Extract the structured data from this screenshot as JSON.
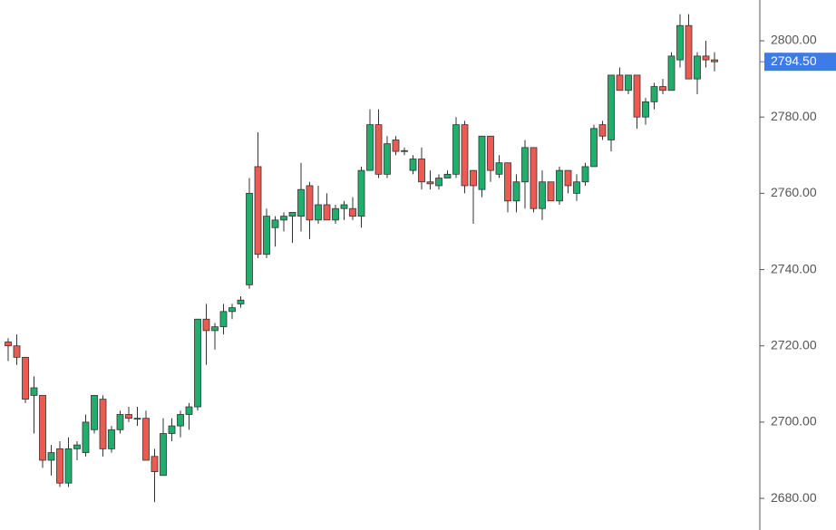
{
  "chart_data": {
    "type": "candlestick",
    "open": [
      2721,
      2720,
      2717,
      2707,
      2707,
      2690,
      2693,
      2684,
      2693,
      2692,
      2698,
      2706,
      2693,
      2698,
      2702,
      2701,
      2701,
      2691,
      2686,
      2697,
      2699,
      2702,
      2704,
      2727,
      2724,
      2725,
      2729,
      2731,
      2736,
      2767,
      2744,
      2751,
      2753,
      2754,
      2754,
      2762,
      2753,
      2757,
      2753,
      2756,
      2756,
      2754,
      2766,
      2778,
      2765,
      2774,
      2771,
      2766,
      2769,
      2763,
      2762,
      2764,
      2765,
      2778,
      2766,
      2761,
      2775,
      2765,
      2768,
      2758,
      2763,
      2772,
      2756,
      2763,
      2758,
      2766,
      2760,
      2763,
      2767,
      2778,
      2774,
      2791,
      2787,
      2791,
      2780,
      2784,
      2788,
      2787,
      2795,
      2804,
      2790,
      2796,
      2795
    ],
    "high": [
      2722,
      2723,
      2717,
      2712,
      2707,
      2694,
      2695,
      2696,
      2695,
      2702,
      2707,
      2707,
      2699,
      2703,
      2704,
      2704,
      2703,
      2693,
      2701,
      2701,
      2703,
      2705,
      2727,
      2731,
      2726,
      2731,
      2731,
      2733,
      2764,
      2776,
      2756,
      2754,
      2755,
      2755,
      2768,
      2763,
      2762,
      2760,
      2757,
      2758,
      2759,
      2767,
      2782,
      2782,
      2775,
      2775,
      2772,
      2770,
      2772,
      2766,
      2765,
      2766,
      2780,
      2779,
      2766,
      2775,
      2775,
      2770,
      2768,
      2765,
      2774,
      2772,
      2766,
      2763,
      2767,
      2766,
      2765,
      2768,
      2778,
      2779,
      2790,
      2793,
      2791,
      2791,
      2785,
      2789,
      2790,
      2797,
      2807,
      2807,
      2797,
      2800,
      2797
    ],
    "low": [
      2716,
      2715,
      2705,
      2697,
      2688,
      2686,
      2683,
      2683,
      2690,
      2691,
      2697,
      2691,
      2692,
      2697,
      2700,
      2699,
      2690,
      2679,
      2686,
      2695,
      2696,
      2698,
      2703,
      2715,
      2719,
      2723,
      2727,
      2730,
      2735,
      2743,
      2743,
      2746,
      2750,
      2747,
      2750,
      2748,
      2752,
      2753,
      2752,
      2753,
      2753,
      2751,
      2766,
      2764,
      2764,
      2770,
      2770,
      2765,
      2761,
      2761,
      2761,
      2764,
      2764,
      2760,
      2752,
      2759,
      2763,
      2764,
      2755,
      2755,
      2756,
      2755,
      2753,
      2758,
      2757,
      2760,
      2758,
      2762,
      2767,
      2774,
      2771,
      2787,
      2786,
      2777,
      2778,
      2782,
      2786,
      2787,
      2793,
      2790,
      2786,
      2793,
      2792
    ],
    "close": [
      2720,
      2717,
      2706,
      2709,
      2690,
      2692,
      2684,
      2693,
      2694,
      2700,
      2707,
      2693,
      2698,
      2702,
      2701,
      2701,
      2690,
      2687,
      2697,
      2699,
      2702,
      2704,
      2727,
      2724,
      2725,
      2729,
      2730,
      2732,
      2760,
      2744,
      2754,
      2753,
      2754,
      2755,
      2761,
      2753,
      2757,
      2753,
      2756,
      2757,
      2754,
      2766,
      2778,
      2765,
      2773,
      2771,
      2771.2,
      2769,
      2763,
      2762.5,
      2764,
      2765,
      2778,
      2762,
      2762,
      2775,
      2766,
      2768,
      2758,
      2763,
      2772,
      2756,
      2763,
      2758,
      2766,
      2762,
      2763,
      2767,
      2777,
      2775,
      2791,
      2787,
      2791,
      2780,
      2784,
      2788,
      2787,
      2796,
      2804,
      2790,
      2796,
      2795,
      2794.5
    ],
    "up_color": "#1fae6b",
    "down_color": "#ec5b52",
    "ylim": [
      2671.7,
      2810.7
    ],
    "yticks": [
      {
        "value": 2680,
        "label": "2680.00"
      },
      {
        "value": 2700,
        "label": "2700.00"
      },
      {
        "value": 2720,
        "label": "2720.00"
      },
      {
        "value": 2740,
        "label": "2740.00"
      },
      {
        "value": 2760,
        "label": "2760.00"
      },
      {
        "value": 2780,
        "label": "2780.00"
      },
      {
        "value": 2800,
        "label": "2800.00"
      }
    ],
    "last_price": {
      "value": 2794.5,
      "label": "2794.50"
    },
    "last_price_color": "#3d7be8"
  }
}
